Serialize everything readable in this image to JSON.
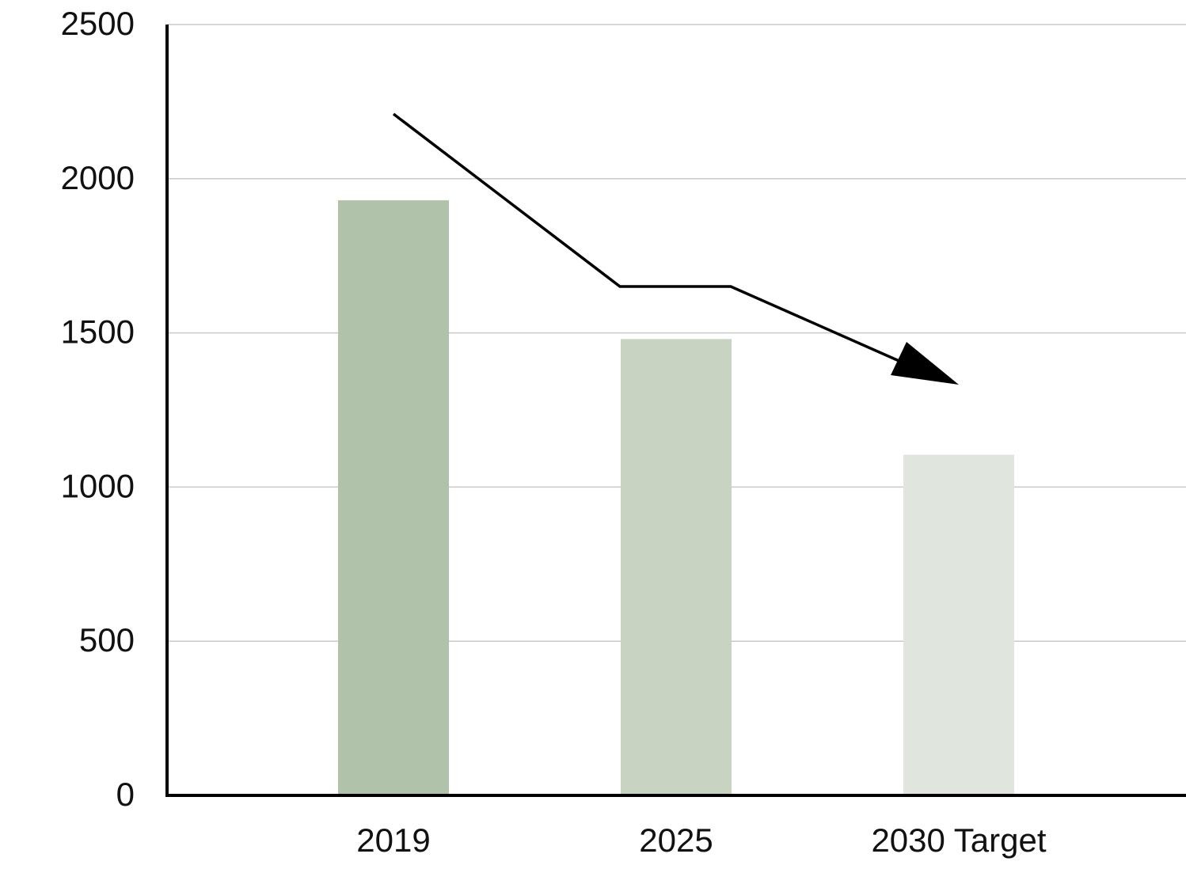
{
  "chart_data": {
    "type": "bar",
    "categories": [
      "2019",
      "2025",
      "2030 Target"
    ],
    "values": [
      1930,
      1480,
      1105
    ],
    "ylim": [
      0,
      2500
    ],
    "yticks": [
      "0",
      "500",
      "1000",
      "1500",
      "2000",
      "2500"
    ],
    "title": "",
    "xlabel": "",
    "ylabel": "",
    "grid": "horizontal",
    "legend": "none",
    "bar_colors": [
      "#b0c2aa",
      "#c8d3c2",
      "#e0e5dd"
    ],
    "annotations": [
      {
        "type": "trend-arrow",
        "direction": "downward",
        "color": "#000000"
      }
    ]
  }
}
